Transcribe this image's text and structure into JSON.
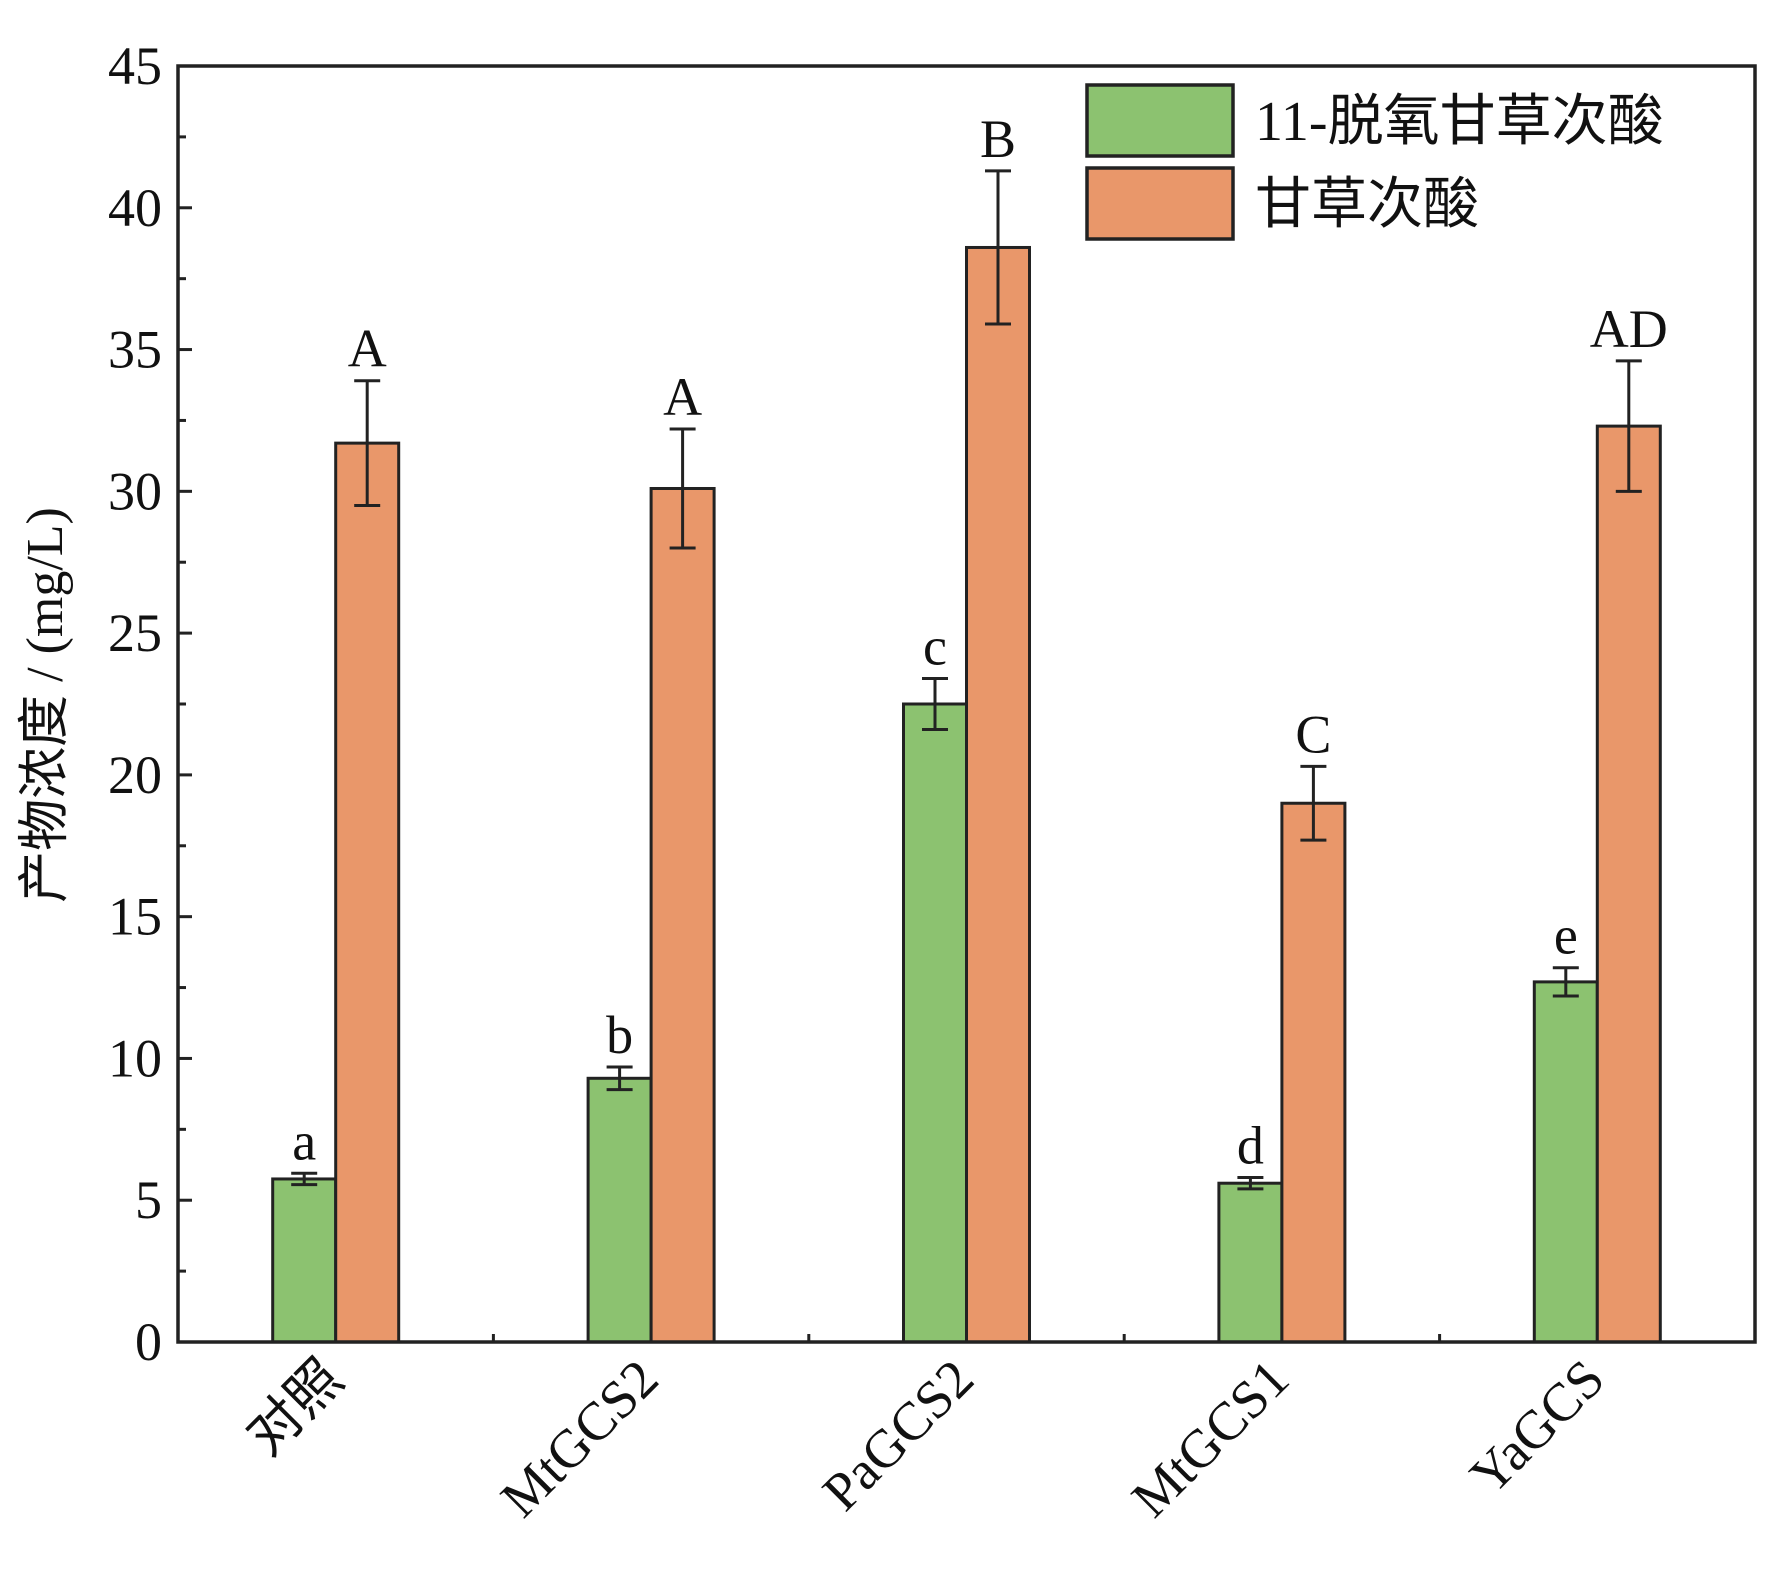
{
  "chart_data": {
    "type": "bar",
    "title": "",
    "xlabel": "",
    "ylabel": "产物浓度 / (mg/L)",
    "ylim": [
      0,
      45
    ],
    "yticks": [
      0,
      5,
      10,
      15,
      20,
      25,
      30,
      35,
      40,
      45
    ],
    "grid": false,
    "legend_position": "top-right",
    "categories": [
      "对照",
      "MtGCS2",
      "PaGCS2",
      "MtGCS1",
      "YaGCS"
    ],
    "series": [
      {
        "name": "11-脱氧甘草次酸",
        "color": "#8cc270",
        "values": [
          5.75,
          9.3,
          22.5,
          5.6,
          12.7
        ],
        "errors": [
          0.2,
          0.4,
          0.9,
          0.2,
          0.5
        ],
        "labels": [
          "a",
          "b",
          "c",
          "d",
          "e"
        ]
      },
      {
        "name": "甘草次酸",
        "color": "#e9976a",
        "values": [
          31.7,
          30.1,
          38.6,
          19.0,
          32.3
        ],
        "errors": [
          2.2,
          2.1,
          2.7,
          1.3,
          2.3
        ],
        "labels": [
          "A",
          "A",
          "B",
          "C",
          "AD"
        ]
      }
    ]
  }
}
